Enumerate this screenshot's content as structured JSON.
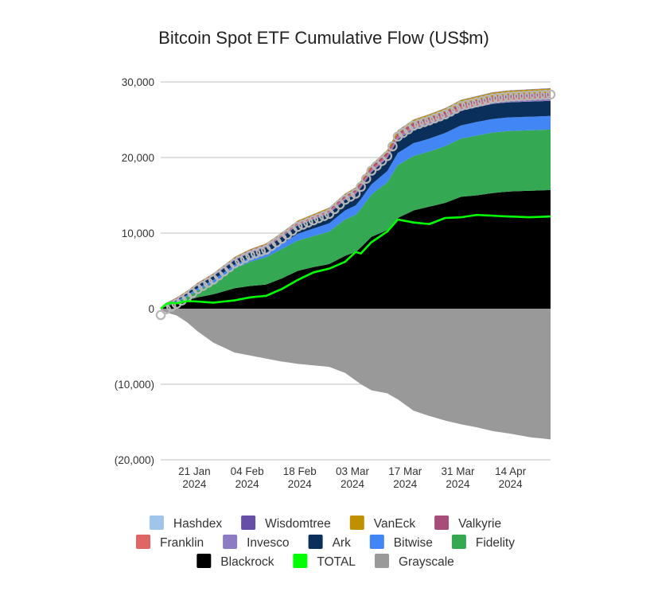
{
  "chart_data": {
    "type": "area",
    "stacked": true,
    "title": "Bitcoin Spot ETF Cumulative Flow (US$m)",
    "xlabel": "",
    "ylabel": "",
    "ylim": [
      -20000,
      30000
    ],
    "yticks": [
      {
        "value": 30000,
        "label": "30,000"
      },
      {
        "value": 20000,
        "label": "20,000"
      },
      {
        "value": 10000,
        "label": "10,000"
      },
      {
        "value": 0,
        "label": "0"
      },
      {
        "value": -10000,
        "label": "(10,000)"
      },
      {
        "value": -20000,
        "label": "(20,000)"
      }
    ],
    "xticks": [
      {
        "index": 6.4,
        "line1": "21 Jan",
        "line2": "2024"
      },
      {
        "index": 16.4,
        "line1": "04 Feb",
        "line2": "2024"
      },
      {
        "index": 26.4,
        "line1": "18 Feb",
        "line2": "2024"
      },
      {
        "index": 36.4,
        "line1": "03 Mar",
        "line2": "2024"
      },
      {
        "index": 46.4,
        "line1": "17 Mar",
        "line2": "2024"
      },
      {
        "index": 56.4,
        "line1": "31 Mar",
        "line2": "2024"
      },
      {
        "index": 66.4,
        "line1": "14 Apr",
        "line2": "2024"
      }
    ],
    "grid": true,
    "legend_position": "bottom",
    "colors": {
      "Blackrock": "#000000",
      "Fidelity": "#34a853",
      "Bitwise": "#4285f4",
      "Ark": "#0b2f5b",
      "Invesco": "#8e7cc3",
      "Franklin": "#e06666",
      "Valkyrie": "#a64d79",
      "VanEck": "#bf9000",
      "Wisdomtree": "#674ea7",
      "Hashdex": "#9fc5e8",
      "Grayscale": "#999999",
      "TOTAL": "#00ff00"
    },
    "legend_items": [
      "Hashdex",
      "Wisdomtree",
      "VanEck",
      "Valkyrie",
      "Franklin",
      "Invesco",
      "Ark",
      "Bitwise",
      "Fidelity",
      "Blackrock",
      "TOTAL",
      "Grayscale"
    ],
    "stack_order": [
      "Blackrock",
      "Fidelity",
      "Bitwise",
      "Ark",
      "Invesco",
      "Franklin",
      "Valkyrie",
      "VanEck",
      "Wisdomtree",
      "Hashdex"
    ],
    "anchor_index": [
      0,
      1,
      2,
      3,
      5,
      7,
      10,
      14,
      17,
      20,
      23,
      26,
      29,
      32,
      35,
      37,
      38,
      40,
      43,
      45,
      48,
      51,
      54,
      57,
      60,
      63,
      66,
      70,
      74
    ],
    "series_anchors": {
      "Blackrock": [
        0,
        300,
        500,
        700,
        1100,
        1500,
        1900,
        2700,
        3000,
        3200,
        4000,
        5000,
        5500,
        5900,
        7000,
        7500,
        8100,
        9500,
        10400,
        12000,
        13000,
        13500,
        14000,
        14800,
        15000,
        15300,
        15500,
        15600,
        15700
      ],
      "Fidelity": [
        0,
        100,
        150,
        200,
        500,
        900,
        1500,
        2600,
        3200,
        3600,
        3900,
        4000,
        4100,
        4300,
        4800,
        4900,
        5100,
        5600,
        6300,
        7000,
        7200,
        7300,
        7500,
        7700,
        7900,
        8000,
        8000,
        8000,
        8000
      ],
      "Bitwise": [
        0,
        100,
        120,
        150,
        200,
        300,
        400,
        500,
        550,
        600,
        700,
        900,
        1000,
        1100,
        1200,
        1250,
        1300,
        1350,
        1500,
        1600,
        1700,
        1700,
        1750,
        1750,
        1800,
        1800,
        1800,
        1800,
        1800
      ],
      "Ark": [
        0,
        100,
        150,
        200,
        300,
        400,
        500,
        600,
        650,
        700,
        900,
        1100,
        1200,
        1300,
        1400,
        1500,
        1500,
        1600,
        1700,
        1800,
        1850,
        1900,
        1900,
        1950,
        1950,
        2000,
        2000,
        2000,
        2000
      ],
      "Invesco": [
        0,
        50,
        60,
        70,
        80,
        100,
        110,
        120,
        130,
        140,
        150,
        160,
        170,
        180,
        190,
        200,
        200,
        210,
        220,
        230,
        240,
        250,
        250,
        260,
        260,
        270,
        270,
        280,
        280
      ],
      "Franklin": [
        0,
        20,
        30,
        40,
        50,
        60,
        70,
        80,
        90,
        100,
        110,
        120,
        130,
        140,
        150,
        160,
        170,
        180,
        190,
        200,
        210,
        220,
        230,
        240,
        250,
        260,
        270,
        280,
        290
      ],
      "Valkyrie": [
        0,
        50,
        60,
        70,
        80,
        100,
        120,
        140,
        160,
        180,
        200,
        220,
        240,
        260,
        280,
        300,
        320,
        340,
        360,
        380,
        400,
        420,
        430,
        440,
        450,
        460,
        470,
        480,
        490
      ],
      "VanEck": [
        0,
        20,
        30,
        40,
        50,
        60,
        70,
        80,
        90,
        100,
        120,
        140,
        160,
        180,
        200,
        220,
        240,
        280,
        320,
        360,
        400,
        420,
        440,
        460,
        480,
        500,
        520,
        540,
        560
      ],
      "Wisdomtree": [
        0,
        5,
        6,
        7,
        8,
        9,
        10,
        11,
        12,
        13,
        14,
        15,
        16,
        17,
        18,
        19,
        20,
        22,
        24,
        26,
        28,
        30,
        32,
        34,
        36,
        38,
        40,
        42,
        44
      ],
      "Hashdex": [
        0,
        5,
        6,
        7,
        8,
        9,
        10,
        11,
        12,
        13,
        14,
        15,
        16,
        17,
        18,
        19,
        20,
        20,
        20,
        20,
        20,
        20,
        20,
        20,
        20,
        20,
        20,
        20,
        20
      ],
      "Grayscale": [
        -100,
        -500,
        -700,
        -900,
        -1800,
        -3000,
        -4500,
        -5800,
        -6200,
        -6600,
        -7000,
        -7300,
        -7500,
        -7700,
        -8500,
        -9500,
        -10000,
        -10800,
        -11200,
        -12000,
        -13500,
        -14200,
        -14800,
        -15300,
        -15700,
        -16200,
        -16500,
        -17000,
        -17300
      ],
      "TOTAL": [
        0,
        600,
        800,
        700,
        1000,
        950,
        800,
        1100,
        1500,
        1700,
        2600,
        3800,
        4800,
        5300,
        6200,
        7500,
        7300,
        8800,
        10200,
        11800,
        11400,
        11200,
        12000,
        12100,
        12400,
        12300,
        12200,
        12100,
        12200
      ]
    },
    "total_markers": "hollow circles along the top of the stacked area"
  }
}
